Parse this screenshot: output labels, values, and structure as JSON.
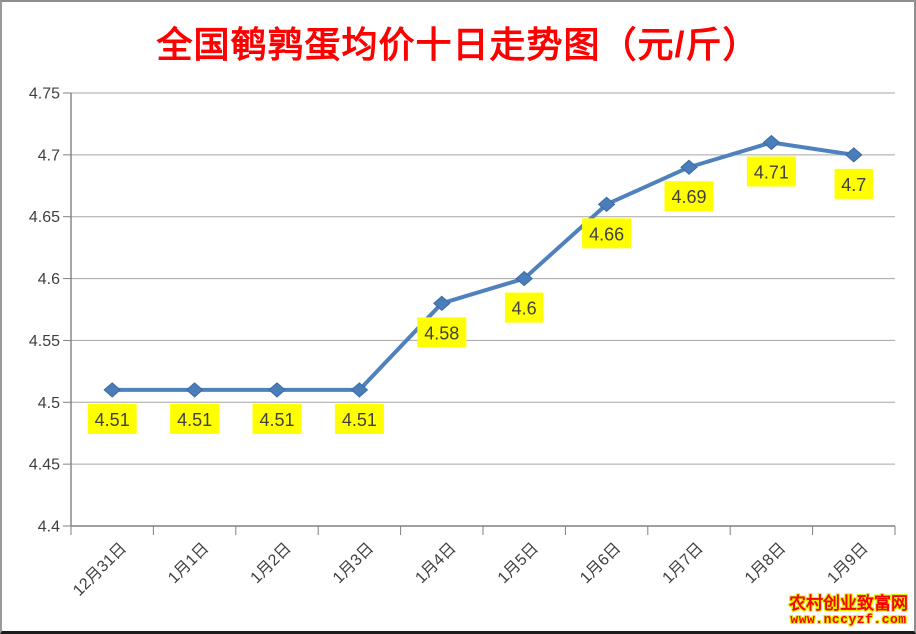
{
  "title": {
    "text": "全国鹌鹑蛋均价十日走势图（元/斤）",
    "color": "#FF0000"
  },
  "chart_data": {
    "type": "line",
    "title": "全国鹌鹑蛋均价十日走势图（元/斤）",
    "categories": [
      "12月31日",
      "1月1日",
      "1月2日",
      "1月3日",
      "1月4日",
      "1月5日",
      "1月6日",
      "1月7日",
      "1月8日",
      "1月9日"
    ],
    "values": [
      4.51,
      4.51,
      4.51,
      4.51,
      4.58,
      4.6,
      4.66,
      4.69,
      4.71,
      4.7
    ],
    "data_labels": [
      "4.51",
      "4.51",
      "4.51",
      "4.51",
      "4.58",
      "4.6",
      "4.66",
      "4.69",
      "4.71",
      "4.7"
    ],
    "xlabel": "",
    "ylabel": "",
    "ylim": [
      4.4,
      4.75
    ],
    "ytick_step": 0.05,
    "ytick_labels": [
      "4.75",
      "4.7",
      "4.65",
      "4.6",
      "4.55",
      "4.5",
      "4.45",
      "4.4"
    ],
    "grid": true,
    "legend_position": "none",
    "colors": {
      "line": "#4F81BD",
      "marker": "#4A7EBB",
      "marker_border": "#3B6A9F",
      "label_bg": "#FFFF00",
      "label_text": "#404040",
      "grid": "#A6A6A6",
      "axis": "#808080",
      "tick_text": "#404040"
    }
  },
  "watermark": {
    "site_name": "农村创业致富网",
    "url": "www.nccyzf.com",
    "text_color": "#FF0000",
    "glow_color": "#DDF200"
  }
}
